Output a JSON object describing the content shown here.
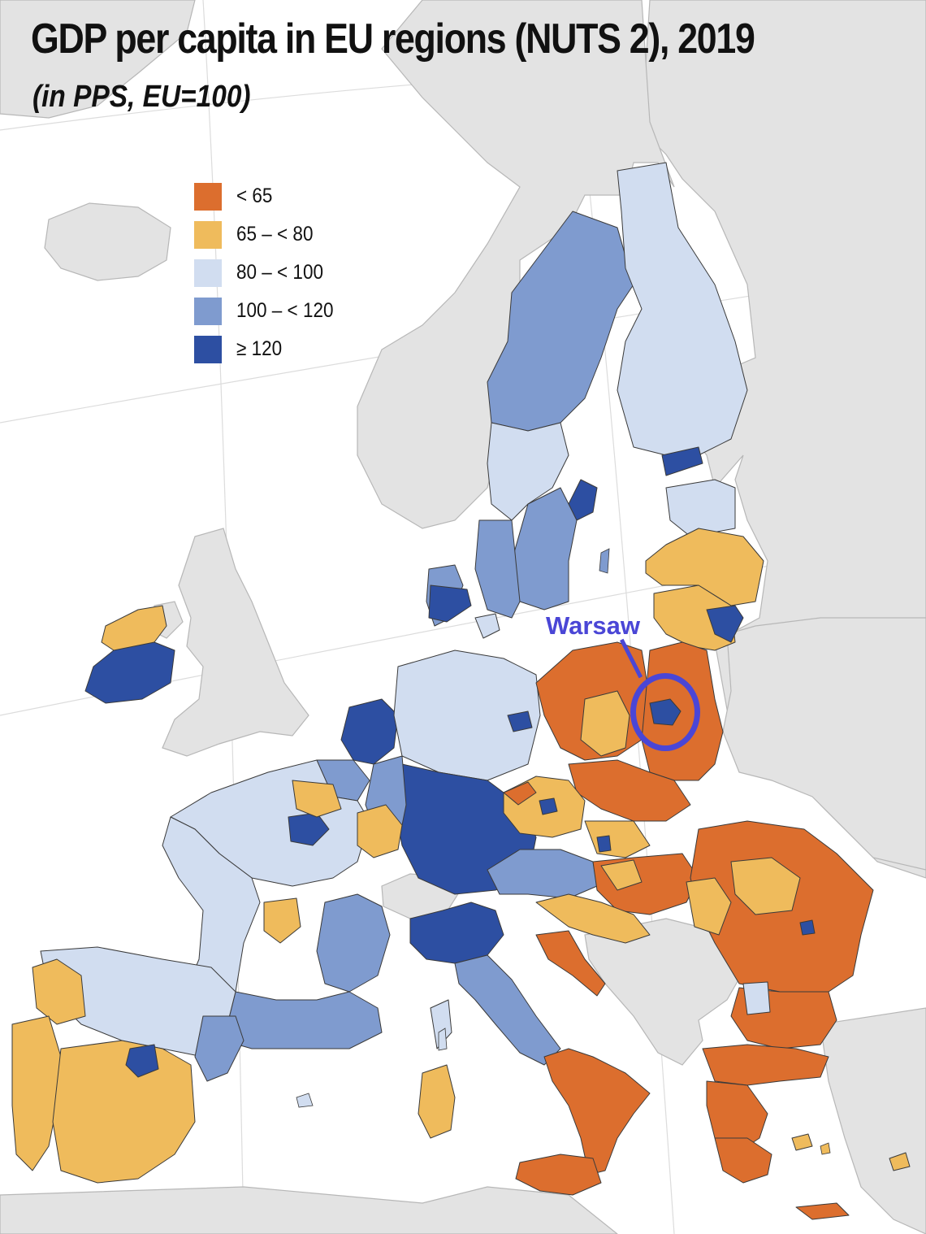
{
  "title": "GDP per capita in EU regions (NUTS 2), 2019",
  "subtitle": "(in PPS, EU=100)",
  "legend": [
    {
      "label": "< 65",
      "color": "#dc6e2e"
    },
    {
      "label": "65 – < 80",
      "color": "#efbb5c"
    },
    {
      "label": "80 – < 100",
      "color": "#d1ddf0"
    },
    {
      "label": "100 – < 120",
      "color": "#7f9bcf"
    },
    {
      "label": "≥ 120",
      "color": "#2d4fa2"
    }
  ],
  "highlight": {
    "label": "Warsaw",
    "color": "#4a46d6"
  },
  "colors": {
    "sea": "#ffffff",
    "non_eu_land": "#e3e3e3",
    "borders": "#3a3a3a"
  }
}
